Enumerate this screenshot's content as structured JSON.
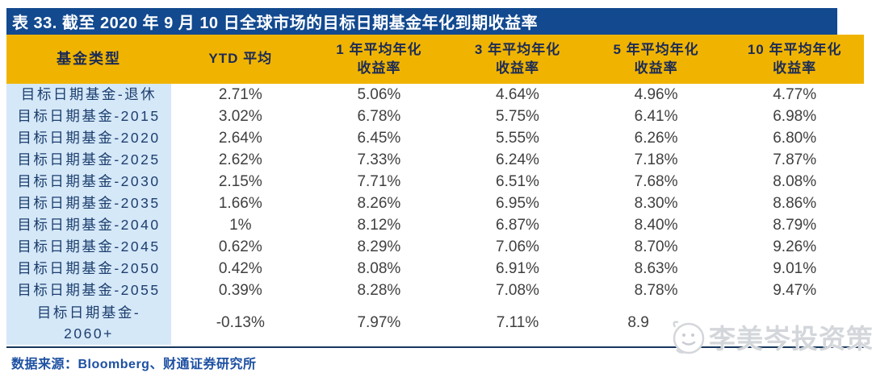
{
  "title": "表 33. 截至 2020 年 9 月 10 日全球市场的目标日期基金年化到期收益率",
  "colors": {
    "title_bar_navy": "#12498F",
    "header_gold": "#F0B400",
    "label_column_blue": "#D5E8F8",
    "header_text_navy": "#1C2B56",
    "label_text_navy": "#1C3E6E",
    "value_text_gray": "#3F3F3F",
    "source_text_blue": "#1D50A2",
    "rule_navy": "#17365D"
  },
  "table": {
    "headers": [
      "基金类型",
      "YTD 平均",
      "1 年平均年化\n收益率",
      "3 年平均年化\n收益率",
      "5 年平均年化\n收益率",
      "10 年平均年化\n收益率"
    ],
    "rows": [
      {
        "label": "目标日期基金-退休",
        "ytd": "2.71%",
        "y1": "5.06%",
        "y3": "4.64%",
        "y5": "4.96%",
        "y10": "4.77%"
      },
      {
        "label": "目标日期基金-2015",
        "ytd": "3.02%",
        "y1": "6.78%",
        "y3": "5.75%",
        "y5": "6.41%",
        "y10": "6.98%"
      },
      {
        "label": "目标日期基金-2020",
        "ytd": "2.64%",
        "y1": "6.45%",
        "y3": "5.55%",
        "y5": "6.26%",
        "y10": "6.80%"
      },
      {
        "label": "目标日期基金-2025",
        "ytd": "2.62%",
        "y1": "7.33%",
        "y3": "6.24%",
        "y5": "7.18%",
        "y10": "7.87%"
      },
      {
        "label": "目标日期基金-2030",
        "ytd": "2.15%",
        "y1": "7.71%",
        "y3": "6.51%",
        "y5": "7.68%",
        "y10": "8.08%"
      },
      {
        "label": "目标日期基金-2035",
        "ytd": "1.66%",
        "y1": "8.26%",
        "y3": "6.95%",
        "y5": "8.30%",
        "y10": "8.86%"
      },
      {
        "label": "目标日期基金-2040",
        "ytd": "1%",
        "y1": "8.12%",
        "y3": "6.87%",
        "y5": "8.40%",
        "y10": "8.79%"
      },
      {
        "label": "目标日期基金-2045",
        "ytd": "0.62%",
        "y1": "8.29%",
        "y3": "7.06%",
        "y5": "8.70%",
        "y10": "9.26%"
      },
      {
        "label": "目标日期基金-2050",
        "ytd": "0.42%",
        "y1": "8.08%",
        "y3": "6.91%",
        "y5": "8.63%",
        "y10": "9.01%"
      },
      {
        "label": "目标日期基金-2055",
        "ytd": "0.39%",
        "y1": "8.28%",
        "y3": "7.08%",
        "y5": "8.78%",
        "y10": "9.47%"
      },
      {
        "label": "目标日期基金-\n2060+",
        "ytd": "-0.13%",
        "y1": "7.97%",
        "y3": "7.11%",
        "y5": "8.9",
        "y10": ""
      }
    ]
  },
  "source": "数据来源：Bloomberg、财通证券研究所",
  "watermark": {
    "icon": "cartoon-face-avatar",
    "text": "李美岑投资策略"
  },
  "chart_data": {
    "type": "table",
    "title": "表 33. 截至 2020 年 9 月 10 日全球市场的目标日期基金年化到期收益率",
    "columns": [
      "基金类型",
      "YTD 平均",
      "1 年平均年化收益率",
      "3 年平均年化收益率",
      "5 年平均年化收益率",
      "10 年平均年化收益率"
    ],
    "rows": [
      [
        "目标日期基金-退休",
        "2.71%",
        "5.06%",
        "4.64%",
        "4.96%",
        "4.77%"
      ],
      [
        "目标日期基金-2015",
        "3.02%",
        "6.78%",
        "5.75%",
        "6.41%",
        "6.98%"
      ],
      [
        "目标日期基金-2020",
        "2.64%",
        "6.45%",
        "5.55%",
        "6.26%",
        "6.80%"
      ],
      [
        "目标日期基金-2025",
        "2.62%",
        "7.33%",
        "6.24%",
        "7.18%",
        "7.87%"
      ],
      [
        "目标日期基金-2030",
        "2.15%",
        "7.71%",
        "6.51%",
        "7.68%",
        "8.08%"
      ],
      [
        "目标日期基金-2035",
        "1.66%",
        "8.26%",
        "6.95%",
        "8.30%",
        "8.86%"
      ],
      [
        "目标日期基金-2040",
        "1%",
        "8.12%",
        "6.87%",
        "8.40%",
        "8.79%"
      ],
      [
        "目标日期基金-2045",
        "0.62%",
        "8.29%",
        "7.06%",
        "8.70%",
        "9.26%"
      ],
      [
        "目标日期基金-2050",
        "0.42%",
        "8.08%",
        "6.91%",
        "8.63%",
        "9.01%"
      ],
      [
        "目标日期基金-2055",
        "0.39%",
        "8.28%",
        "7.08%",
        "8.78%",
        "9.47%"
      ],
      [
        "目标日期基金-2060+",
        "-0.13%",
        "7.97%",
        "7.11%",
        "8.9 (partially obscured by watermark)",
        "(obscured by watermark)"
      ]
    ],
    "source": "数据来源：Bloomberg、财通证券研究所"
  }
}
